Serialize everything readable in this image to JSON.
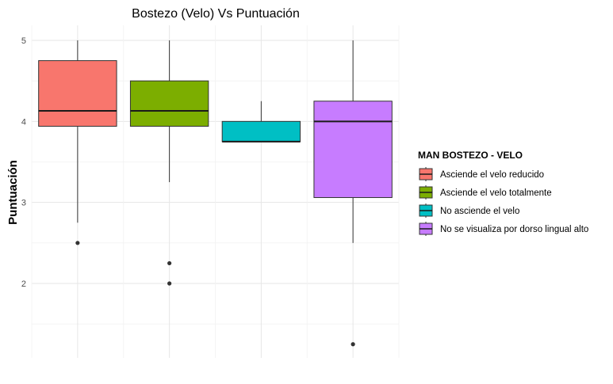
{
  "chart_data": {
    "type": "box",
    "title": "Bostezo (Velo) Vs Puntuación",
    "xlabel": "",
    "ylabel": "Puntuación",
    "ylim": [
      1.05,
      5.1
    ],
    "yticks": [
      2,
      3,
      4,
      5
    ],
    "ytick_labels": [
      "2",
      "3",
      "4",
      "5"
    ],
    "grid": true,
    "legend": {
      "title": "MAN BOSTEZO - VELO",
      "position": "right"
    },
    "series": [
      {
        "name": "Asciende el velo reducido",
        "color": "#F8766D",
        "stats": {
          "min": 2.75,
          "q1": 3.94,
          "median": 4.13,
          "q3": 4.75,
          "max": 5.0
        },
        "outliers": [
          2.5
        ]
      },
      {
        "name": "Asciende el velo totalmente",
        "color": "#7CAE00",
        "stats": {
          "min": 3.25,
          "q1": 3.94,
          "median": 4.13,
          "q3": 4.5,
          "max": 5.0
        },
        "outliers": [
          2.25,
          2.0
        ]
      },
      {
        "name": "No asciende el velo",
        "color": "#00BFC4",
        "stats": {
          "min": 3.75,
          "q1": 3.75,
          "median": 3.75,
          "q3": 4.0,
          "max": 4.25
        },
        "outliers": []
      },
      {
        "name": "No se visualiza por dorso lingual alto",
        "color": "#C77CFF",
        "stats": {
          "min": 2.5,
          "q1": 3.06,
          "median": 4.0,
          "q3": 4.25,
          "max": 5.0
        },
        "outliers": [
          1.25
        ]
      }
    ]
  }
}
